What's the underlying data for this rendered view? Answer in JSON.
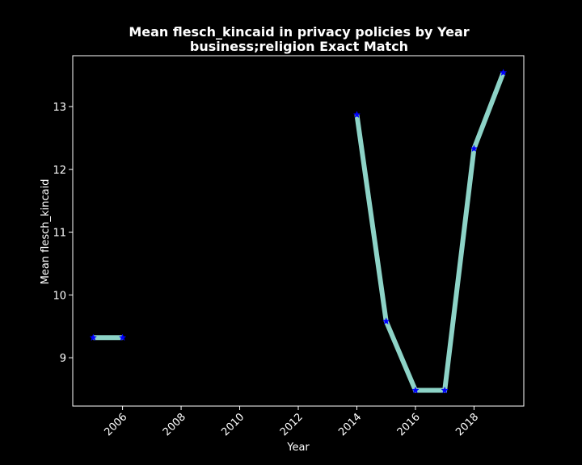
{
  "chart_data": {
    "type": "line",
    "title_line1": "Mean flesch_kincaid in privacy policies by Year",
    "title_line2": "business;religion Exact Match",
    "xlabel": "Year",
    "ylabel": "Mean flesch_kincaid",
    "xlim": [
      2004.3,
      2019.7
    ],
    "ylim": [
      8.23,
      13.81
    ],
    "x_ticks": [
      2006,
      2008,
      2010,
      2012,
      2014,
      2016,
      2018
    ],
    "x_tick_labels": [
      "2006",
      "2008",
      "2010",
      "2012",
      "2014",
      "2016",
      "2018"
    ],
    "y_ticks": [
      9,
      10,
      11,
      12,
      13
    ],
    "y_tick_labels": [
      "9",
      "10",
      "11",
      "12",
      "13"
    ],
    "segments": [
      [
        {
          "x": 2005,
          "y": 9.32
        },
        {
          "x": 2006,
          "y": 9.32
        }
      ],
      [
        {
          "x": 2014,
          "y": 12.87
        },
        {
          "x": 2015,
          "y": 9.58
        },
        {
          "x": 2016,
          "y": 8.48
        },
        {
          "x": 2017,
          "y": 8.48
        },
        {
          "x": 2018,
          "y": 12.33
        },
        {
          "x": 2019,
          "y": 13.54
        }
      ]
    ],
    "grid": false,
    "line_color": "#8dd3c7",
    "marker_color": "#0000ff",
    "background_color": "#000000",
    "axis_color": "#ffffff"
  }
}
